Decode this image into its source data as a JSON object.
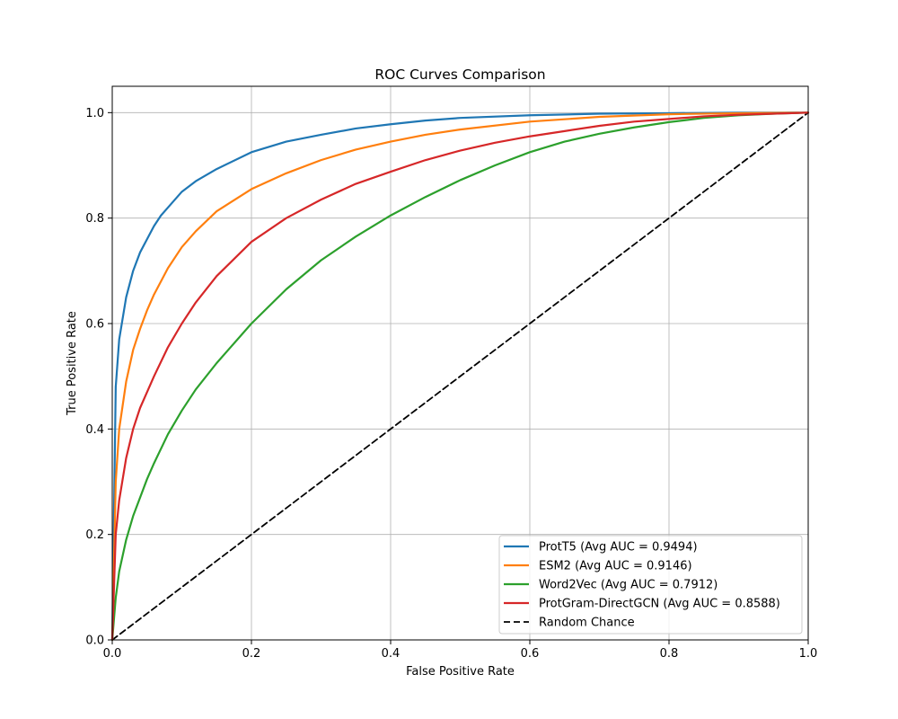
{
  "chart_data": {
    "type": "line",
    "title": "ROC Curves Comparison",
    "xlabel": "False Positive Rate",
    "ylabel": "True Positive Rate",
    "xlim": [
      0,
      1
    ],
    "ylim": [
      0,
      1.05
    ],
    "xticks": [
      "0.0",
      "0.2",
      "0.4",
      "0.6",
      "0.8",
      "1.0"
    ],
    "yticks": [
      "0.0",
      "0.2",
      "0.4",
      "0.6",
      "0.8",
      "1.0"
    ],
    "grid": true,
    "legend_position": "lower-right",
    "series": [
      {
        "name": "ProtT5 (Avg AUC = 0.9494)",
        "color": "#1f77b4",
        "style": "solid",
        "x": [
          0,
          0.005,
          0.01,
          0.02,
          0.03,
          0.04,
          0.05,
          0.06,
          0.07,
          0.08,
          0.1,
          0.12,
          0.15,
          0.2,
          0.25,
          0.3,
          0.35,
          0.4,
          0.45,
          0.5,
          0.6,
          0.7,
          0.8,
          0.9,
          1.0
        ],
        "y": [
          0,
          0.48,
          0.57,
          0.65,
          0.7,
          0.735,
          0.76,
          0.785,
          0.805,
          0.82,
          0.85,
          0.87,
          0.893,
          0.925,
          0.945,
          0.958,
          0.97,
          0.978,
          0.985,
          0.99,
          0.995,
          0.998,
          0.999,
          1.0,
          1.0
        ]
      },
      {
        "name": "ESM2 (Avg AUC = 0.9146)",
        "color": "#ff7f0e",
        "style": "solid",
        "x": [
          0,
          0.005,
          0.01,
          0.02,
          0.03,
          0.04,
          0.05,
          0.06,
          0.08,
          0.1,
          0.12,
          0.15,
          0.2,
          0.25,
          0.3,
          0.35,
          0.4,
          0.45,
          0.5,
          0.6,
          0.7,
          0.8,
          0.9,
          1.0
        ],
        "y": [
          0,
          0.3,
          0.4,
          0.49,
          0.55,
          0.59,
          0.625,
          0.655,
          0.705,
          0.745,
          0.775,
          0.813,
          0.855,
          0.885,
          0.91,
          0.93,
          0.945,
          0.958,
          0.968,
          0.983,
          0.992,
          0.997,
          0.999,
          1.0
        ]
      },
      {
        "name": "Word2Vec (Avg AUC = 0.7912)",
        "color": "#2ca02c",
        "style": "solid",
        "x": [
          0,
          0.005,
          0.01,
          0.02,
          0.03,
          0.04,
          0.05,
          0.06,
          0.08,
          0.1,
          0.12,
          0.15,
          0.2,
          0.25,
          0.3,
          0.35,
          0.4,
          0.45,
          0.5,
          0.55,
          0.6,
          0.65,
          0.7,
          0.75,
          0.8,
          0.85,
          0.9,
          0.95,
          1.0
        ],
        "y": [
          0,
          0.08,
          0.13,
          0.19,
          0.235,
          0.27,
          0.305,
          0.335,
          0.39,
          0.435,
          0.475,
          0.525,
          0.6,
          0.665,
          0.72,
          0.765,
          0.805,
          0.84,
          0.872,
          0.9,
          0.925,
          0.945,
          0.96,
          0.972,
          0.982,
          0.99,
          0.995,
          0.998,
          1.0
        ]
      },
      {
        "name": "ProtGram-DirectGCN (Avg AUC = 0.8588)",
        "color": "#d62728",
        "style": "solid",
        "x": [
          0,
          0.005,
          0.01,
          0.02,
          0.03,
          0.04,
          0.05,
          0.06,
          0.08,
          0.1,
          0.12,
          0.15,
          0.2,
          0.25,
          0.3,
          0.35,
          0.4,
          0.45,
          0.5,
          0.55,
          0.6,
          0.65,
          0.7,
          0.75,
          0.8,
          0.85,
          0.9,
          0.95,
          1.0
        ],
        "y": [
          0,
          0.2,
          0.265,
          0.345,
          0.4,
          0.44,
          0.47,
          0.5,
          0.555,
          0.6,
          0.64,
          0.69,
          0.755,
          0.8,
          0.835,
          0.865,
          0.888,
          0.91,
          0.928,
          0.943,
          0.955,
          0.965,
          0.975,
          0.983,
          0.988,
          0.993,
          0.996,
          0.998,
          1.0
        ]
      },
      {
        "name": "Random Chance",
        "color": "#000000",
        "style": "dashed",
        "x": [
          0,
          1
        ],
        "y": [
          0,
          1
        ]
      }
    ]
  }
}
